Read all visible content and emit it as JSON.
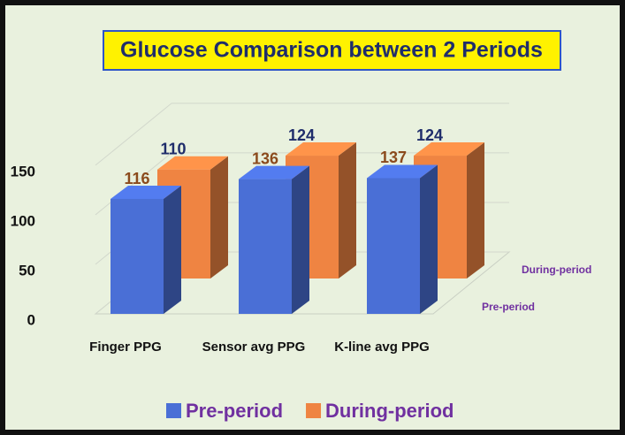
{
  "chart_data": {
    "type": "bar3d",
    "title": "Glucose Comparison between 2 Periods",
    "categories": [
      "Finger PPG",
      "Sensor avg PPG",
      "K-line avg PPG"
    ],
    "series": [
      {
        "name": "Pre-period",
        "color": "#4a6fd6",
        "values": [
          116,
          136,
          137
        ]
      },
      {
        "name": "During-period",
        "color": "#ef8442",
        "values": [
          110,
          124,
          124
        ]
      }
    ],
    "ylim": [
      0,
      150
    ],
    "yticks": [
      0,
      50,
      100,
      150
    ],
    "grid": true,
    "legend": "bottom"
  }
}
